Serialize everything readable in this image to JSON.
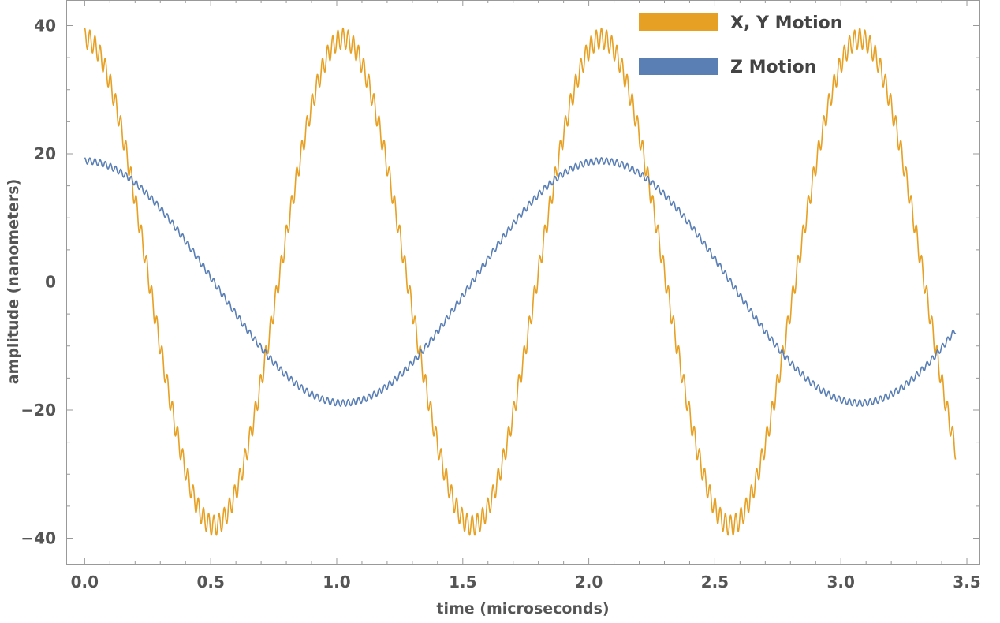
{
  "chart_data": {
    "type": "line",
    "title": "",
    "xlabel": "time (microseconds)",
    "ylabel": "amplitude (nanometers)",
    "xlim": [
      -0.07,
      3.55
    ],
    "ylim": [
      -44,
      44
    ],
    "x_ticks": [
      0.0,
      0.5,
      1.0,
      1.5,
      2.0,
      2.5,
      3.0,
      3.5
    ],
    "x_tick_labels": [
      "0.0",
      "0.5",
      "1.0",
      "1.5",
      "2.0",
      "2.5",
      "3.0",
      "3.5"
    ],
    "y_ticks": [
      -40,
      -20,
      0,
      20,
      40
    ],
    "y_tick_labels": [
      "−40",
      "−20",
      "0",
      "20",
      "40"
    ],
    "grid": false,
    "frame": true,
    "zero_line": true,
    "legend_position": "top-right",
    "series": [
      {
        "name": "X, Y Motion",
        "color": "#E6A024",
        "amplitude": 38,
        "period": 1.025,
        "ripple_amplitude": 1.6,
        "ripple_period": 0.0205,
        "x": [
          0.0,
          0.128,
          0.256,
          0.384,
          0.5125,
          0.641,
          0.769,
          0.897,
          1.025,
          1.153,
          1.281,
          1.409,
          1.5375,
          1.666,
          1.794,
          1.922,
          2.05,
          2.178,
          2.306,
          2.434,
          2.5625,
          2.691,
          2.819,
          2.947,
          3.075,
          3.203,
          3.331,
          3.455
        ],
        "values": [
          39.6,
          26.9,
          0,
          -26.9,
          -38,
          -26.9,
          0,
          26.9,
          38,
          26.9,
          0,
          -26.9,
          -38,
          -26.9,
          0,
          26.9,
          38,
          26.9,
          0,
          -26.9,
          -38,
          -26.9,
          0,
          26.9,
          38,
          26.9,
          0,
          -29.2
        ]
      },
      {
        "name": "Z Motion",
        "color": "#5A7FB5",
        "amplitude": 18.9,
        "period": 2.05,
        "ripple_amplitude": 0.5,
        "ripple_period": 0.0205,
        "x": [
          0.0,
          0.256,
          0.5125,
          0.769,
          1.025,
          1.281,
          1.5375,
          1.794,
          2.05,
          2.306,
          2.5625,
          2.819,
          3.075,
          3.331,
          3.455
        ],
        "values": [
          19.4,
          13.4,
          0,
          -13.4,
          -18.9,
          -13.4,
          0,
          13.4,
          18.9,
          13.4,
          0,
          -13.4,
          -18.9,
          -13.4,
          -7.0
        ]
      }
    ]
  }
}
